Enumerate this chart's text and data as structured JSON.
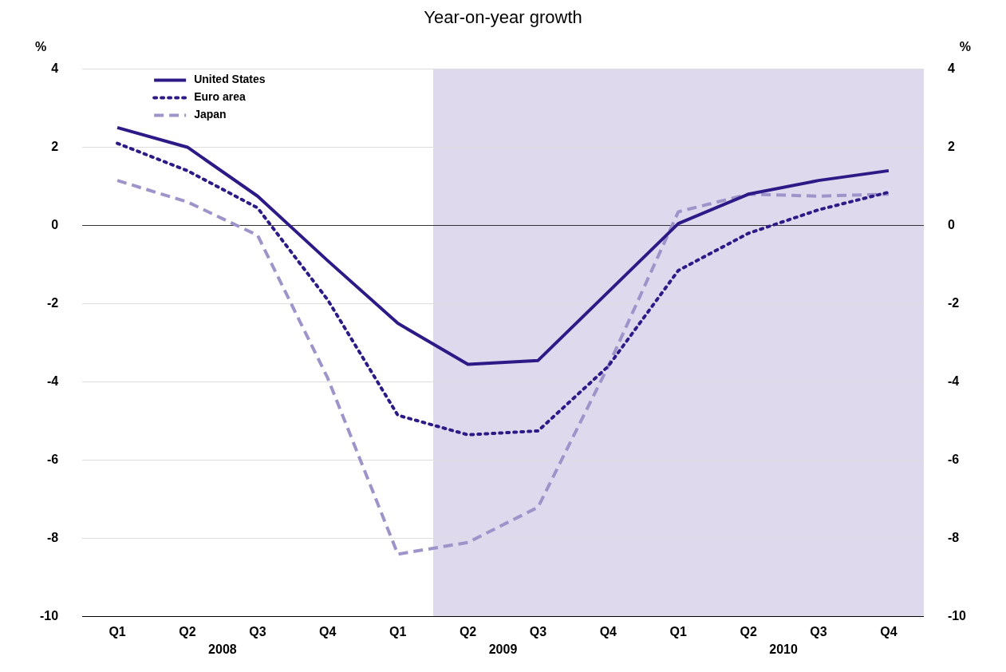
{
  "chart_data": {
    "type": "line",
    "title": "Year-on-year growth",
    "ylabel": "%",
    "y2label": "%",
    "categories": [
      "Q1",
      "Q2",
      "Q3",
      "Q4",
      "Q1",
      "Q2",
      "Q3",
      "Q4",
      "Q1",
      "Q2",
      "Q3",
      "Q4"
    ],
    "ylim": [
      -10,
      4
    ],
    "yticks": [
      -10,
      -8,
      -6,
      -4,
      -2,
      0,
      2,
      4
    ],
    "y2lim": [
      -10,
      4
    ],
    "y2ticks": [
      -10,
      -8,
      -6,
      -4,
      -2,
      0,
      2,
      4
    ],
    "annotations": [
      "2008",
      "2009",
      "2010"
    ],
    "series": [
      {
        "name": "United States",
        "color": "#2e1a87",
        "line_style": "solid",
        "values": [
          2.5,
          2.0,
          0.75,
          -0.9,
          -2.5,
          -3.55,
          -3.45,
          -1.7,
          0.05,
          0.8,
          1.15,
          1.4
        ]
      },
      {
        "name": "Euro area",
        "color": "#2e1a87",
        "line_style": "dotted",
        "values": [
          2.1,
          1.4,
          0.45,
          -1.9,
          -4.85,
          -5.35,
          -5.25,
          -3.6,
          -1.15,
          -0.2,
          0.4,
          0.85
        ]
      },
      {
        "name": "Japan",
        "color": "#9f94c9",
        "line_style": "dashed",
        "values": [
          1.15,
          0.6,
          -0.25,
          -3.9,
          -8.4,
          -8.1,
          -7.2,
          -3.6,
          0.35,
          0.8,
          0.75,
          0.8
        ]
      }
    ],
    "ref_lines": [
      {
        "axis": "y",
        "value": 0,
        "color": "#333333"
      }
    ],
    "grid": "y",
    "legend": "top left",
    "marker": "none"
  }
}
